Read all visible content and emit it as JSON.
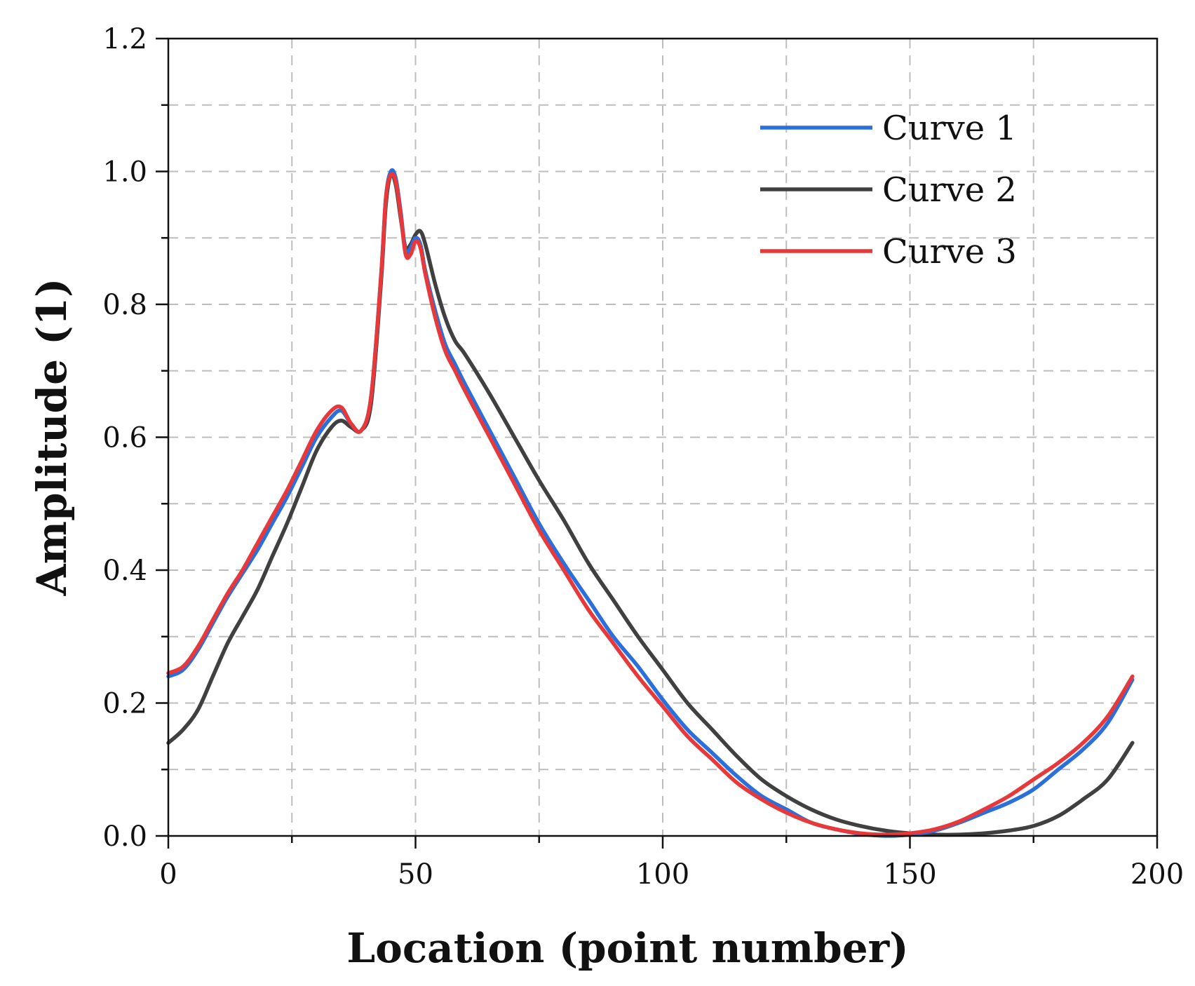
{
  "chart_data": {
    "type": "line",
    "title": "",
    "xlabel": "Location (point number)",
    "ylabel": "Amplitude (1)",
    "xlim": [
      0,
      200
    ],
    "ylim": [
      0,
      1.2
    ],
    "x_major_ticks": [
      0,
      50,
      100,
      150,
      200
    ],
    "x_tick_labels": [
      "0",
      "50",
      "100",
      "150",
      "200"
    ],
    "x_minor_ticks": [
      25,
      75,
      125,
      175
    ],
    "y_major_ticks": [
      0,
      0.2,
      0.4,
      0.6,
      0.8,
      1.0,
      1.2
    ],
    "y_tick_labels": [
      "0.0",
      "0.2",
      "0.4",
      "0.6",
      "0.8",
      "1.0",
      "1.2"
    ],
    "y_minor_ticks": [
      0.1,
      0.3,
      0.5,
      0.7,
      0.9,
      1.1
    ],
    "grid": true,
    "grid_style": "dashed",
    "legend_position": "top-right",
    "series": [
      {
        "name": "Curve 1",
        "color": "#2a6fdb",
        "x": [
          0,
          3,
          6,
          9,
          12,
          15,
          18,
          21,
          24,
          27,
          30,
          33,
          35,
          37,
          39,
          41,
          43,
          44,
          45,
          46,
          47,
          48,
          49,
          50,
          51,
          52,
          54,
          56,
          58,
          60,
          65,
          70,
          75,
          80,
          85,
          90,
          95,
          100,
          105,
          110,
          115,
          120,
          125,
          130,
          135,
          140,
          145,
          150,
          155,
          160,
          165,
          170,
          175,
          180,
          185,
          190,
          195
        ],
        "y": [
          0.24,
          0.25,
          0.28,
          0.32,
          0.36,
          0.395,
          0.43,
          0.47,
          0.51,
          0.555,
          0.6,
          0.63,
          0.64,
          0.62,
          0.61,
          0.66,
          0.84,
          0.96,
          1.0,
          0.99,
          0.94,
          0.88,
          0.885,
          0.9,
          0.89,
          0.85,
          0.79,
          0.74,
          0.71,
          0.68,
          0.61,
          0.54,
          0.47,
          0.41,
          0.355,
          0.3,
          0.255,
          0.205,
          0.16,
          0.125,
          0.09,
          0.06,
          0.04,
          0.02,
          0.01,
          0.003,
          0.0,
          0.002,
          0.008,
          0.02,
          0.035,
          0.05,
          0.07,
          0.1,
          0.13,
          0.17,
          0.235
        ]
      },
      {
        "name": "Curve 2",
        "color": "#404040",
        "x": [
          0,
          3,
          6,
          9,
          12,
          15,
          18,
          21,
          24,
          27,
          30,
          33,
          35,
          37,
          39,
          41,
          43,
          44,
          45,
          46,
          47,
          48,
          49,
          50,
          51,
          52,
          54,
          56,
          58,
          60,
          65,
          70,
          75,
          80,
          85,
          90,
          95,
          100,
          105,
          110,
          115,
          120,
          125,
          130,
          135,
          140,
          145,
          150,
          155,
          160,
          165,
          170,
          175,
          180,
          185,
          190,
          195
        ],
        "y": [
          0.14,
          0.16,
          0.19,
          0.24,
          0.29,
          0.33,
          0.37,
          0.42,
          0.47,
          0.525,
          0.58,
          0.615,
          0.625,
          0.615,
          0.61,
          0.65,
          0.83,
          0.95,
          0.995,
          0.98,
          0.93,
          0.885,
          0.89,
          0.905,
          0.91,
          0.89,
          0.83,
          0.78,
          0.745,
          0.725,
          0.665,
          0.6,
          0.535,
          0.475,
          0.41,
          0.355,
          0.3,
          0.25,
          0.2,
          0.16,
          0.12,
          0.085,
          0.06,
          0.04,
          0.025,
          0.015,
          0.008,
          0.004,
          0.002,
          0.002,
          0.004,
          0.008,
          0.015,
          0.03,
          0.055,
          0.085,
          0.14
        ]
      },
      {
        "name": "Curve 3",
        "color": "#e8393a",
        "x": [
          0,
          3,
          6,
          9,
          12,
          15,
          18,
          21,
          24,
          27,
          30,
          33,
          35,
          37,
          39,
          41,
          43,
          44,
          45,
          46,
          47,
          48,
          49,
          50,
          51,
          52,
          54,
          56,
          58,
          60,
          65,
          70,
          75,
          80,
          85,
          90,
          95,
          100,
          105,
          110,
          115,
          120,
          125,
          130,
          135,
          140,
          145,
          150,
          155,
          160,
          165,
          170,
          175,
          180,
          185,
          190,
          195
        ],
        "y": [
          0.245,
          0.255,
          0.285,
          0.325,
          0.365,
          0.4,
          0.44,
          0.48,
          0.52,
          0.565,
          0.61,
          0.64,
          0.645,
          0.62,
          0.61,
          0.66,
          0.84,
          0.96,
          0.995,
          0.985,
          0.935,
          0.875,
          0.875,
          0.895,
          0.885,
          0.845,
          0.78,
          0.73,
          0.7,
          0.67,
          0.6,
          0.53,
          0.46,
          0.4,
          0.34,
          0.29,
          0.24,
          0.195,
          0.15,
          0.115,
          0.08,
          0.055,
          0.035,
          0.02,
          0.01,
          0.004,
          0.002,
          0.004,
          0.01,
          0.022,
          0.04,
          0.06,
          0.085,
          0.11,
          0.14,
          0.18,
          0.24
        ]
      }
    ]
  }
}
